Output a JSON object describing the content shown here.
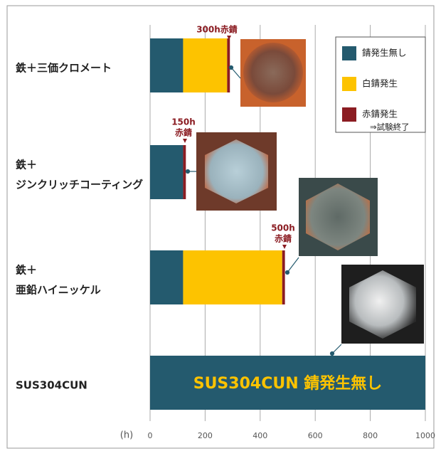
{
  "chart_data": {
    "type": "stacked_barh",
    "categories": [
      [
        "鉄＋三価クロメート"
      ],
      [
        "鉄＋",
        "ジンクリッチコーティング"
      ],
      [
        "鉄＋",
        "亜鉛ハイニッケル"
      ],
      [
        "SUS304CUN"
      ]
    ],
    "series": [
      {
        "name": "錆発生無し",
        "color": "#245a6e",
        "values": [
          120,
          120,
          120,
          1000
        ]
      },
      {
        "name": "白錆発生",
        "color": "#fdc300",
        "values": [
          160,
          null,
          360,
          null
        ]
      },
      {
        "name": "赤錆発生",
        "color": "#8b1c22",
        "values": [
          10,
          10,
          10,
          null
        ]
      }
    ],
    "legend_note": "⇒試験終了",
    "x_unit": "(h)",
    "xlim": [
      0,
      1000
    ],
    "xticks": [
      0,
      200,
      400,
      600,
      800,
      1000
    ],
    "grid": true,
    "annotations": [
      {
        "lines": [
          "300h赤錆"
        ]
      },
      {
        "lines": [
          "150h",
          "赤錆"
        ]
      },
      {
        "lines": [
          "500h",
          "赤錆"
        ]
      }
    ],
    "bar_label": "SUS304CUN 錆発生無し"
  }
}
